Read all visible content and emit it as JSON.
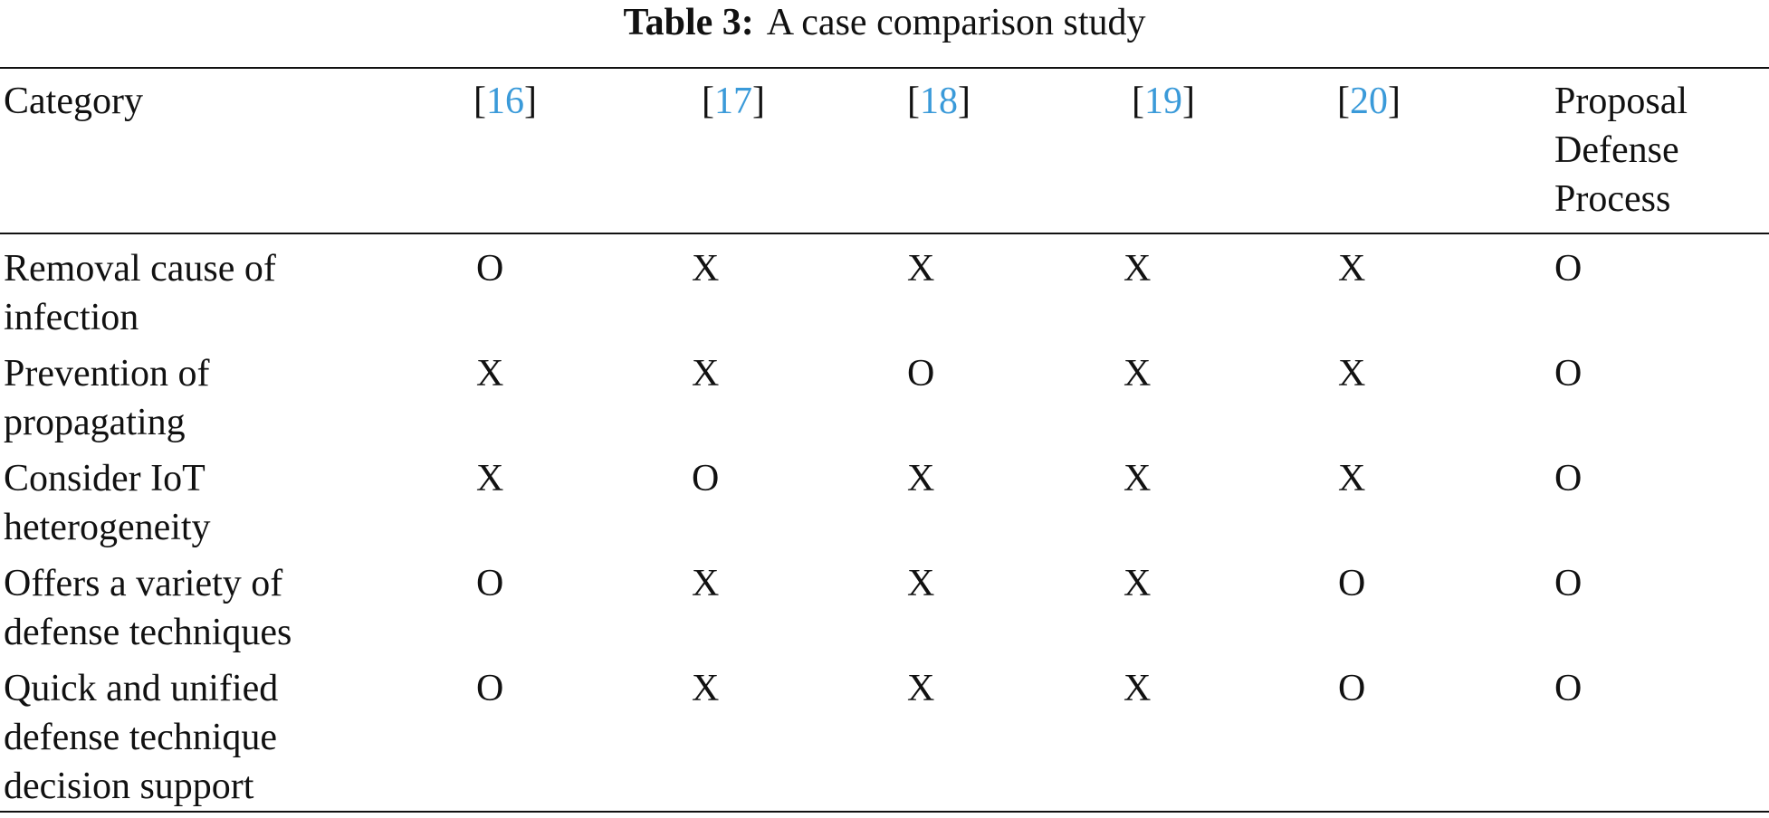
{
  "table": {
    "title": {
      "label": "Table 3:",
      "text": "A case comparison study"
    },
    "header": [
      {
        "text": "Category"
      },
      {
        "pre": "[",
        "ref": "16",
        "post": "]"
      },
      {
        "pre": "[",
        "ref": "17",
        "post": "]"
      },
      {
        "pre": "[",
        "ref": "18",
        "post": "]"
      },
      {
        "pre": "[",
        "ref": "19",
        "post": "]"
      },
      {
        "pre": "[",
        "ref": "20",
        "post": "]"
      },
      {
        "text": "Proposal Defense Process"
      }
    ],
    "rows": [
      [
        "Removal cause of infection",
        "O",
        "X",
        "X",
        "X",
        "X",
        "O"
      ],
      [
        "Prevention of propagating",
        "X",
        "X",
        "O",
        "X",
        "X",
        "O"
      ],
      [
        "Consider IoT heterogeneity",
        "X",
        "O",
        "X",
        "X",
        "X",
        "O"
      ],
      [
        "Offers a variety of defense techniques",
        "O",
        "X",
        "X",
        "X",
        "O",
        "O"
      ],
      [
        "Quick and unified defense technique decision support",
        "O",
        "X",
        "X",
        "X",
        "O",
        "O"
      ]
    ]
  }
}
